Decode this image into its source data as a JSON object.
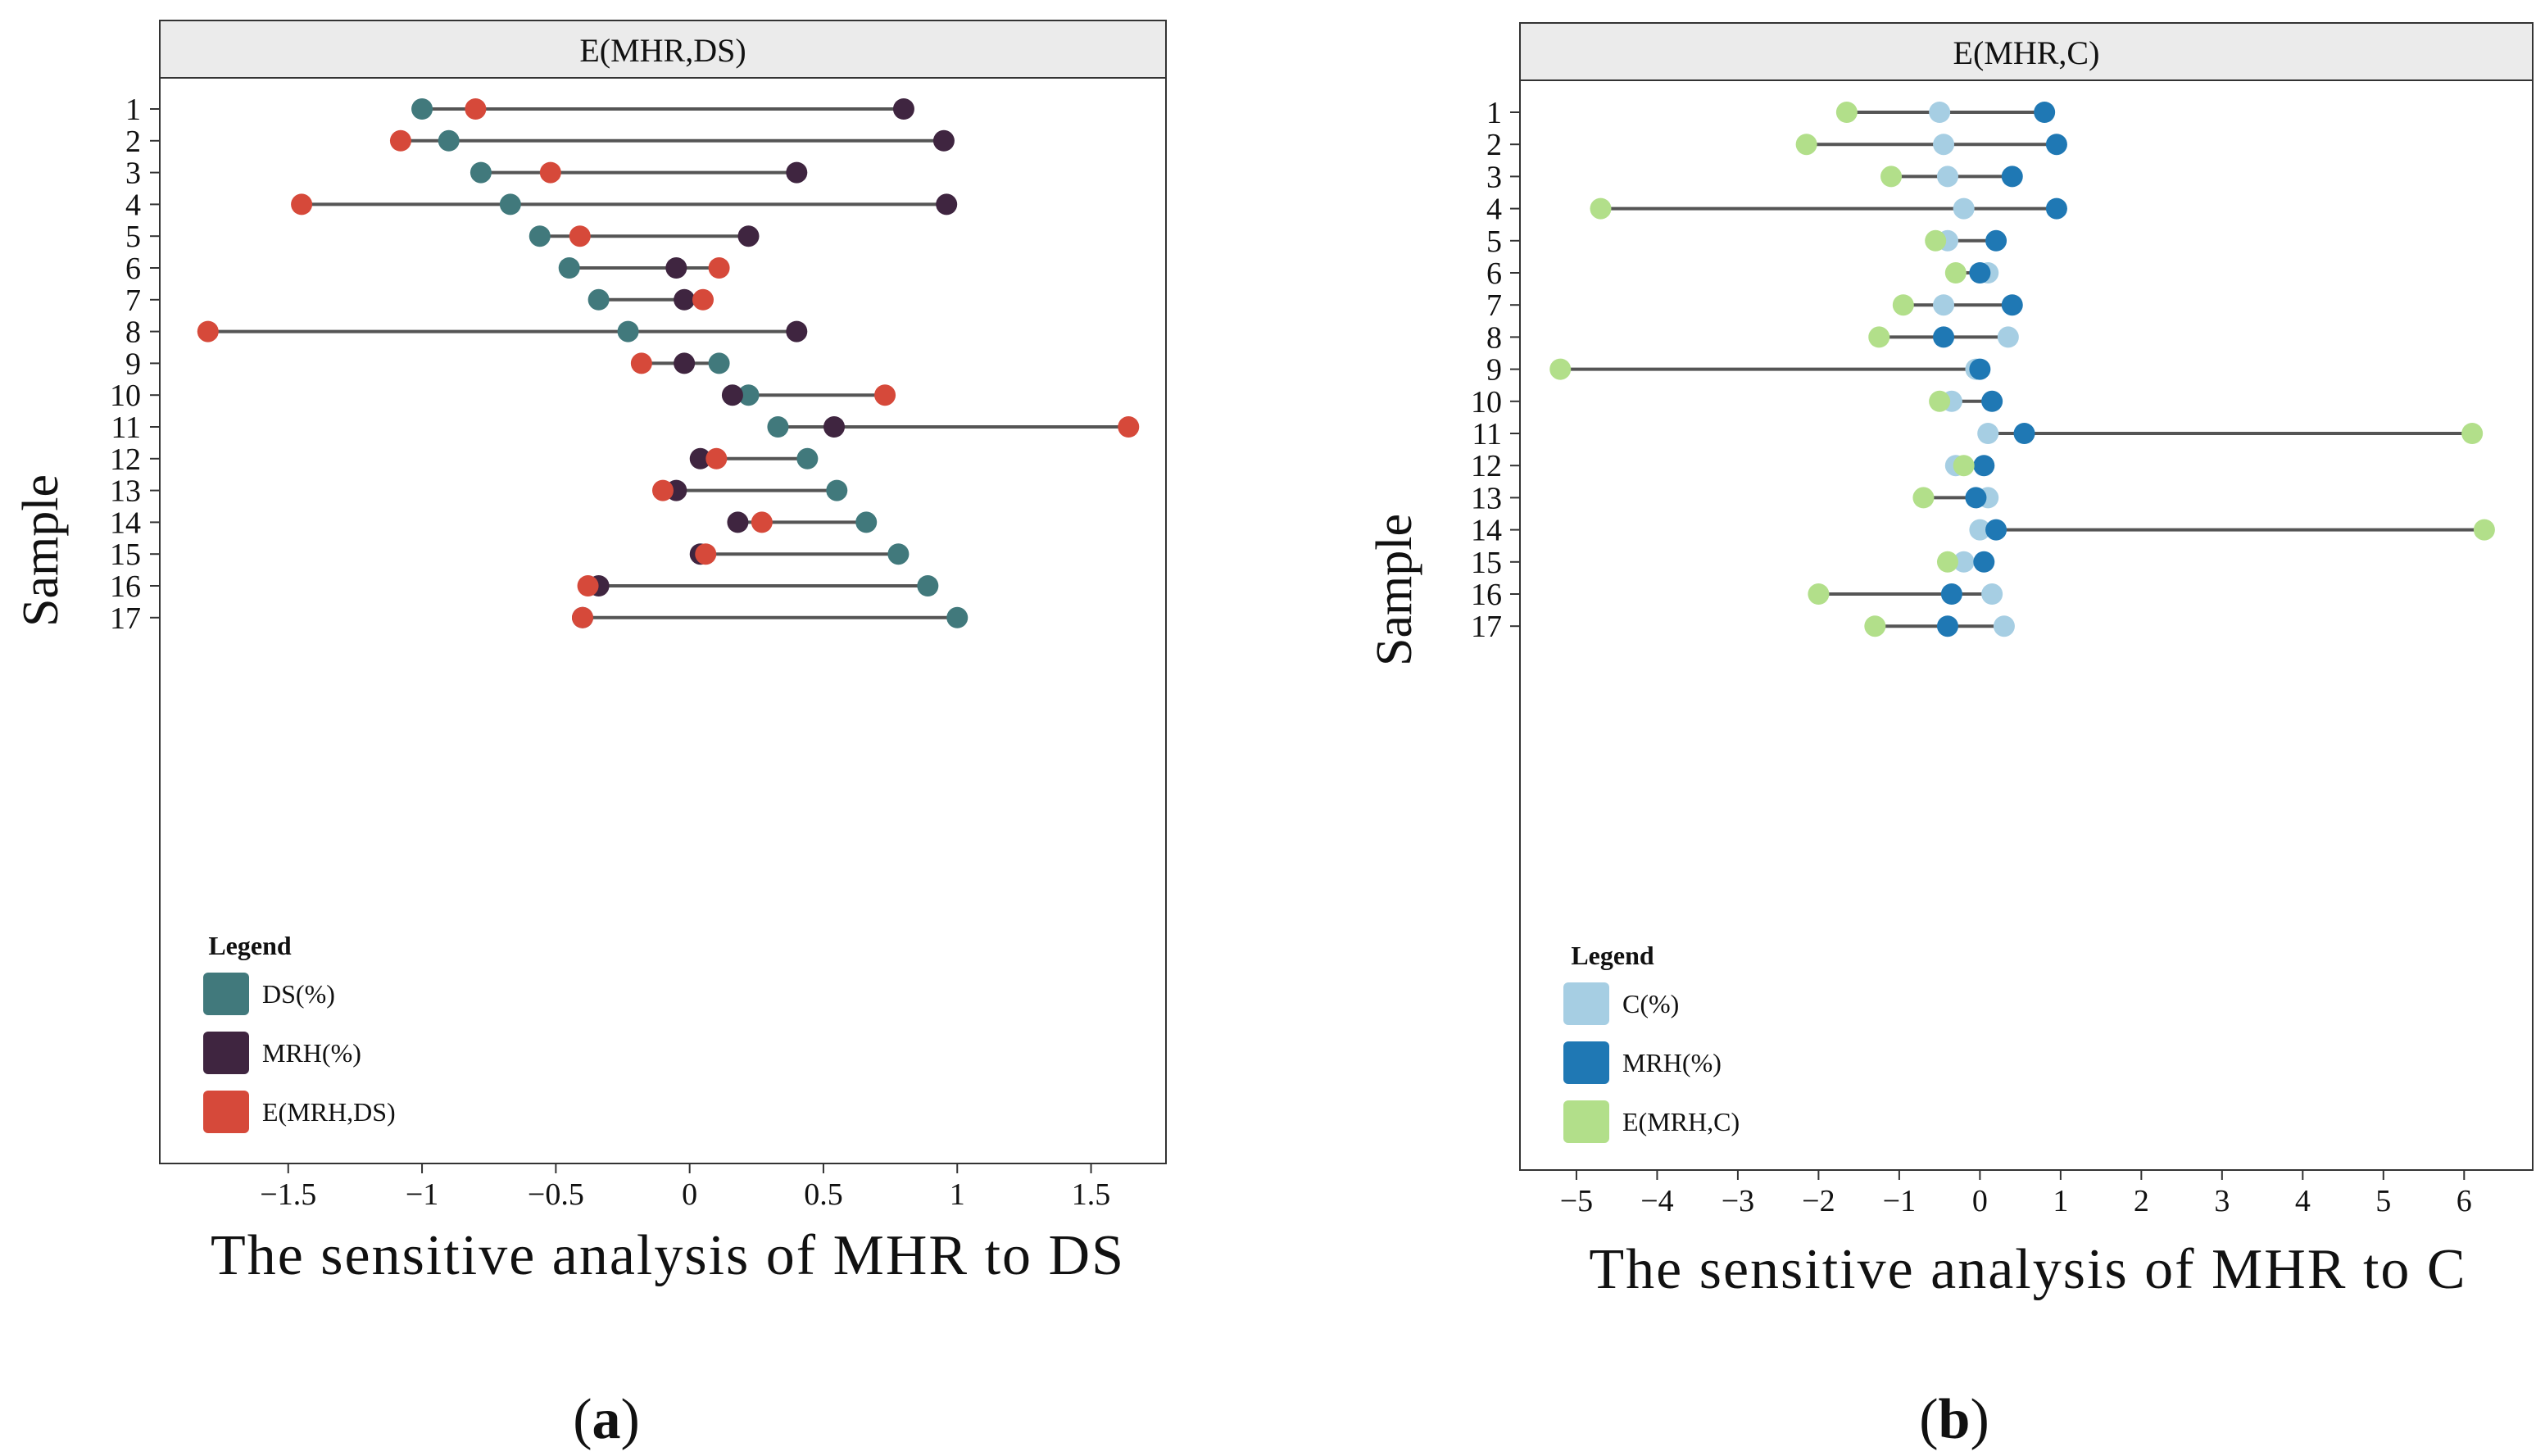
{
  "chart_data": [
    {
      "type": "dot",
      "panel_tag": "a",
      "strip_title": "E(MHR,DS)",
      "xlabel": "The sensitive analysis of MHR to DS",
      "ylabel": "Sample",
      "xlim": [
        -1.98,
        1.78
      ],
      "x_ticks": [
        -1.5,
        -1,
        -0.5,
        0,
        0.5,
        1,
        1.5
      ],
      "x_tick_labels": [
        "−1.5",
        "−1",
        "−0.5",
        "0",
        "0.5",
        "1",
        "1.5"
      ],
      "categories": [
        "1",
        "2",
        "3",
        "4",
        "5",
        "6",
        "7",
        "8",
        "9",
        "10",
        "11",
        "12",
        "13",
        "14",
        "15",
        "16",
        "17"
      ],
      "legend": {
        "title": "Legend",
        "position": "bottom-left"
      },
      "series": [
        {
          "name": "DS(%)",
          "color": "#41797c",
          "values": [
            -1.0,
            -0.9,
            -0.78,
            -0.67,
            -0.56,
            -0.45,
            -0.34,
            -0.23,
            0.11,
            0.22,
            0.33,
            0.44,
            0.55,
            0.66,
            0.78,
            0.89,
            1.0
          ]
        },
        {
          "name": "MRH(%)",
          "color": "#3f2540",
          "values": [
            0.8,
            0.95,
            0.4,
            0.96,
            0.22,
            -0.05,
            -0.02,
            0.4,
            -0.02,
            0.16,
            0.54,
            0.04,
            -0.05,
            0.18,
            0.04,
            -0.34,
            -0.4
          ]
        },
        {
          "name": "E(MRH,DS)",
          "color": "#d6493a",
          "values": [
            -0.8,
            -1.08,
            -0.52,
            -1.45,
            -0.41,
            0.11,
            0.05,
            -1.8,
            -0.18,
            0.73,
            1.64,
            0.1,
            -0.1,
            0.27,
            0.06,
            -0.38,
            -0.4
          ]
        }
      ]
    },
    {
      "type": "dot",
      "panel_tag": "b",
      "strip_title": "E(MHR,C)",
      "xlabel": "The sensitive analysis of MHR to C",
      "ylabel": "Sample",
      "xlim": [
        -5.7,
        6.85
      ],
      "x_ticks": [
        -5,
        -4,
        -3,
        -2,
        -1,
        0,
        1,
        2,
        3,
        4,
        5,
        6
      ],
      "x_tick_labels": [
        "−5",
        "−4",
        "−3",
        "−2",
        "−1",
        "0",
        "1",
        "2",
        "3",
        "4",
        "5",
        "6"
      ],
      "categories": [
        "1",
        "2",
        "3",
        "4",
        "5",
        "6",
        "7",
        "8",
        "9",
        "10",
        "11",
        "12",
        "13",
        "14",
        "15",
        "16",
        "17"
      ],
      "legend": {
        "title": "Legend",
        "position": "bottom-left"
      },
      "series": [
        {
          "name": "C(%)",
          "color": "#a6cee3",
          "values": [
            -0.5,
            -0.45,
            -0.4,
            -0.2,
            -0.4,
            0.1,
            -0.45,
            0.35,
            -0.05,
            -0.35,
            0.1,
            -0.3,
            0.1,
            0.0,
            -0.2,
            0.15,
            0.3
          ]
        },
        {
          "name": "MRH(%)",
          "color": "#1f78b4",
          "values": [
            0.8,
            0.95,
            0.4,
            0.95,
            0.2,
            0.0,
            0.4,
            -0.45,
            0.0,
            0.15,
            0.55,
            0.05,
            -0.05,
            0.2,
            0.05,
            -0.35,
            -0.4
          ]
        },
        {
          "name": "E(MRH,C)",
          "color": "#b2df8a",
          "values": [
            -1.65,
            -2.15,
            -1.1,
            -4.7,
            -0.55,
            -0.3,
            -0.95,
            -1.25,
            -5.2,
            -0.5,
            6.1,
            -0.2,
            -0.7,
            6.25,
            -0.4,
            -2.0,
            -1.3
          ]
        }
      ]
    }
  ]
}
